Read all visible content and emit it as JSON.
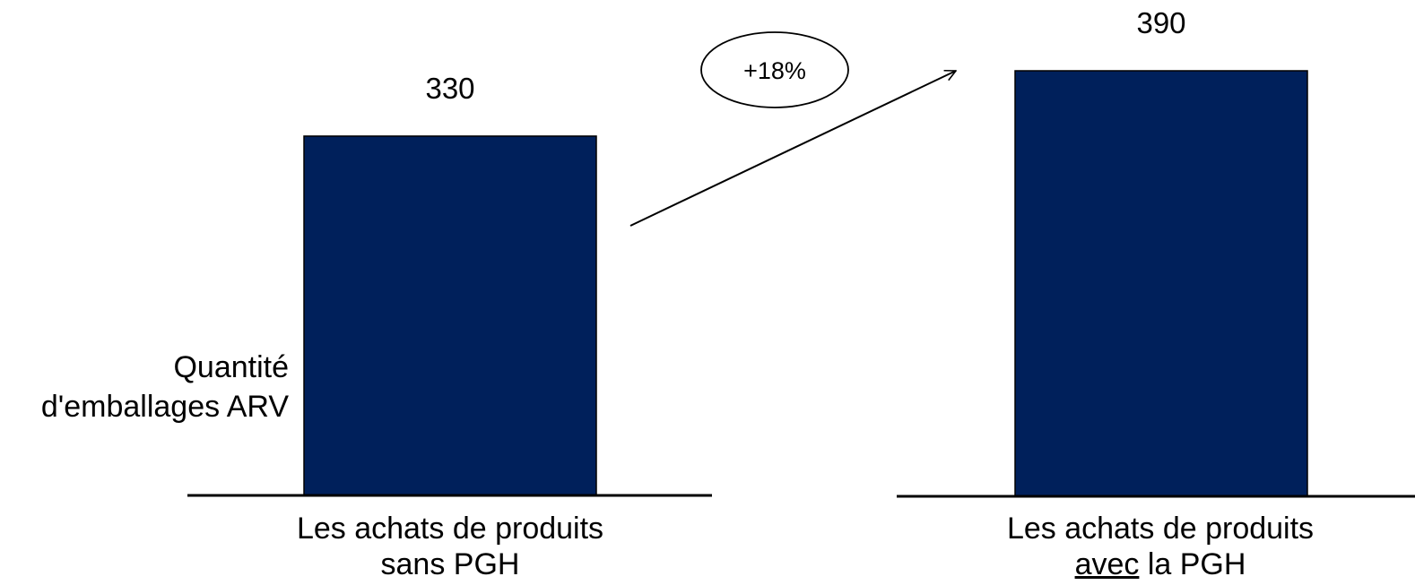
{
  "chart_data": {
    "type": "bar",
    "categories": [
      {
        "line1": "Les achats de produits",
        "line2_emph": "",
        "line2_rest": "sans PGH"
      },
      {
        "line1": "Les achats de produits",
        "line2_emph": "avec",
        "line2_rest": " la PGH"
      }
    ],
    "values": [
      330,
      390
    ],
    "value_labels": [
      "330",
      "390"
    ],
    "ylabel_lines": [
      "Quantité",
      "d'emballages ARV"
    ],
    "annotation": "+18%",
    "ylim": [
      0,
      390
    ],
    "bar_color": "#00205B"
  }
}
